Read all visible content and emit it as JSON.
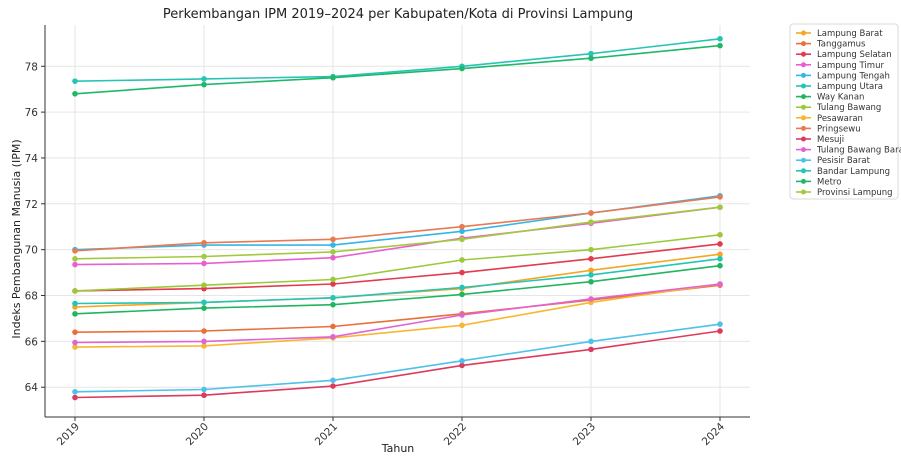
{
  "chart_data": {
    "type": "line",
    "title": "Perkembangan IPM 2019–2024 per Kabupaten/Kota di Provinsi Lampung",
    "xlabel": "Tahun",
    "ylabel": "Indeks Pembangunan Manusia (IPM)",
    "categories": [
      "2019",
      "2020",
      "2021",
      "2022",
      "2023",
      "2024"
    ],
    "ylim": [
      62.7,
      79.8
    ],
    "yticks": [
      64,
      66,
      68,
      70,
      72,
      74,
      76,
      78
    ],
    "grid": true,
    "legend_position": "right",
    "series": [
      {
        "name": "Lampung Barat",
        "color": "#f5a623",
        "values": [
          67.5,
          67.7,
          67.9,
          68.3,
          69.1,
          69.8
        ]
      },
      {
        "name": "Tanggamus",
        "color": "#e86f3a",
        "values": [
          66.4,
          66.45,
          66.65,
          67.2,
          67.8,
          68.45
        ]
      },
      {
        "name": "Lampung Selatan",
        "color": "#e23a4e",
        "values": [
          68.2,
          68.3,
          68.5,
          69.0,
          69.6,
          70.25
        ]
      },
      {
        "name": "Lampung Timur",
        "color": "#e95ed1",
        "values": [
          69.35,
          69.4,
          69.65,
          70.5,
          71.15,
          71.85
        ]
      },
      {
        "name": "Lampung Tengah",
        "color": "#36b5e8",
        "values": [
          70.0,
          70.2,
          70.2,
          70.8,
          71.6,
          72.35
        ]
      },
      {
        "name": "Lampung Utara",
        "color": "#22c5b8",
        "values": [
          67.65,
          67.7,
          67.9,
          68.35,
          68.9,
          69.6
        ]
      },
      {
        "name": "Way Kanan",
        "color": "#20b55e",
        "values": [
          67.2,
          67.45,
          67.6,
          68.05,
          68.6,
          69.3
        ]
      },
      {
        "name": "Tulang Bawang",
        "color": "#9bc93a",
        "values": [
          68.2,
          68.45,
          68.7,
          69.55,
          70.0,
          70.65
        ]
      },
      {
        "name": "Pesawaran",
        "color": "#f7b733",
        "values": [
          65.75,
          65.8,
          66.15,
          66.7,
          67.7,
          68.5
        ]
      },
      {
        "name": "Pringsewu",
        "color": "#e87a52",
        "values": [
          69.95,
          70.3,
          70.45,
          71.0,
          71.6,
          72.3
        ]
      },
      {
        "name": "Mesuji",
        "color": "#dc3a5e",
        "values": [
          63.55,
          63.65,
          64.05,
          64.95,
          65.65,
          66.45
        ]
      },
      {
        "name": "Tulang Bawang Barat",
        "color": "#e264d2",
        "values": [
          65.95,
          66.0,
          66.2,
          67.15,
          67.85,
          68.5
        ]
      },
      {
        "name": "Pesisir Barat",
        "color": "#4ec1ea",
        "values": [
          63.8,
          63.9,
          64.3,
          65.15,
          66.0,
          66.75
        ]
      },
      {
        "name": "Bandar Lampung",
        "color": "#26c4b4",
        "values": [
          77.35,
          77.45,
          77.55,
          78.0,
          78.55,
          79.2
        ]
      },
      {
        "name": "Metro",
        "color": "#1fb86a",
        "values": [
          76.8,
          77.2,
          77.5,
          77.9,
          78.35,
          78.9
        ]
      },
      {
        "name": "Provinsi Lampung",
        "color": "#a3c93f",
        "values": [
          69.6,
          69.7,
          69.9,
          70.45,
          71.2,
          71.85
        ]
      }
    ]
  }
}
